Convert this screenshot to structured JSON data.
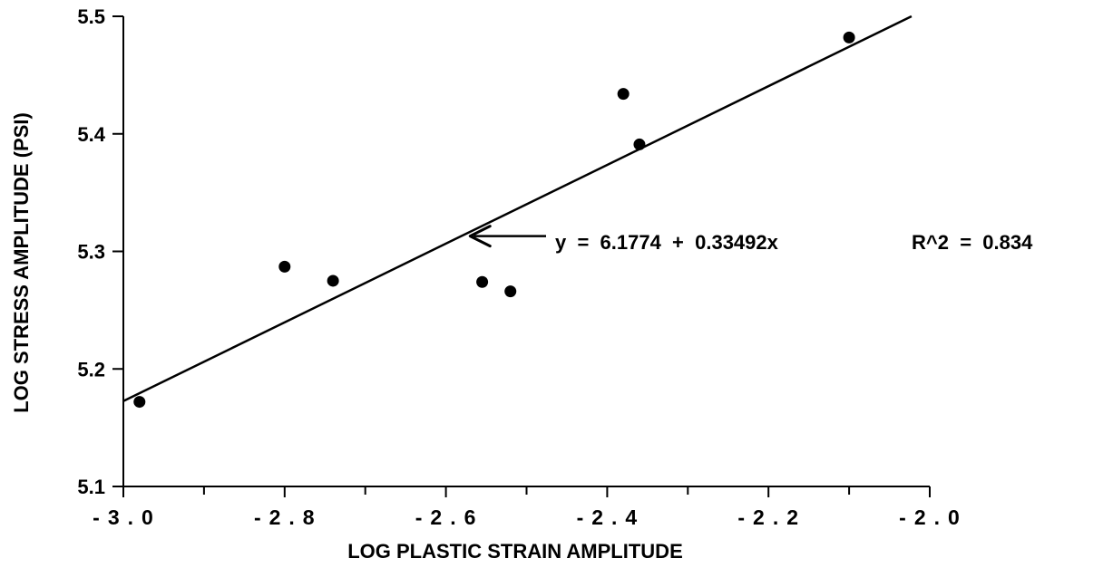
{
  "chart_data": {
    "type": "scatter",
    "title": "",
    "xlabel": "LOG PLASTIC STRAIN AMPLITUDE",
    "ylabel": "LOG STRESS AMPLITUDE (PSI)",
    "xlim": [
      -3.0,
      -2.0
    ],
    "ylim": [
      5.1,
      5.5
    ],
    "x_ticks": [
      "-3.0",
      "-2.8",
      "-2.6",
      "-2.4",
      "-2.2",
      "-2.0"
    ],
    "x_tick_values": [
      -3.0,
      -2.8,
      -2.6,
      -2.4,
      -2.2,
      -2.0
    ],
    "y_ticks": [
      "5.1",
      "5.2",
      "5.3",
      "5.4",
      "5.5"
    ],
    "y_tick_values": [
      5.1,
      5.2,
      5.3,
      5.4,
      5.5
    ],
    "x_minor_step": 0.1,
    "grid": false,
    "points": [
      {
        "x": -2.98,
        "y": 5.172
      },
      {
        "x": -2.8,
        "y": 5.287
      },
      {
        "x": -2.74,
        "y": 5.275
      },
      {
        "x": -2.555,
        "y": 5.274
      },
      {
        "x": -2.52,
        "y": 5.266
      },
      {
        "x": -2.38,
        "y": 5.434
      },
      {
        "x": -2.36,
        "y": 5.391
      },
      {
        "x": -2.1,
        "y": 5.482
      }
    ],
    "fit": {
      "intercept": 6.1774,
      "slope": 0.33492,
      "r_squared": 0.834,
      "equation_label": "y  =  6.1774  +  0.33492x",
      "r2_label": "R^2  =  0.834",
      "arrow_target": {
        "x": -2.57,
        "y": 5.313
      }
    }
  }
}
